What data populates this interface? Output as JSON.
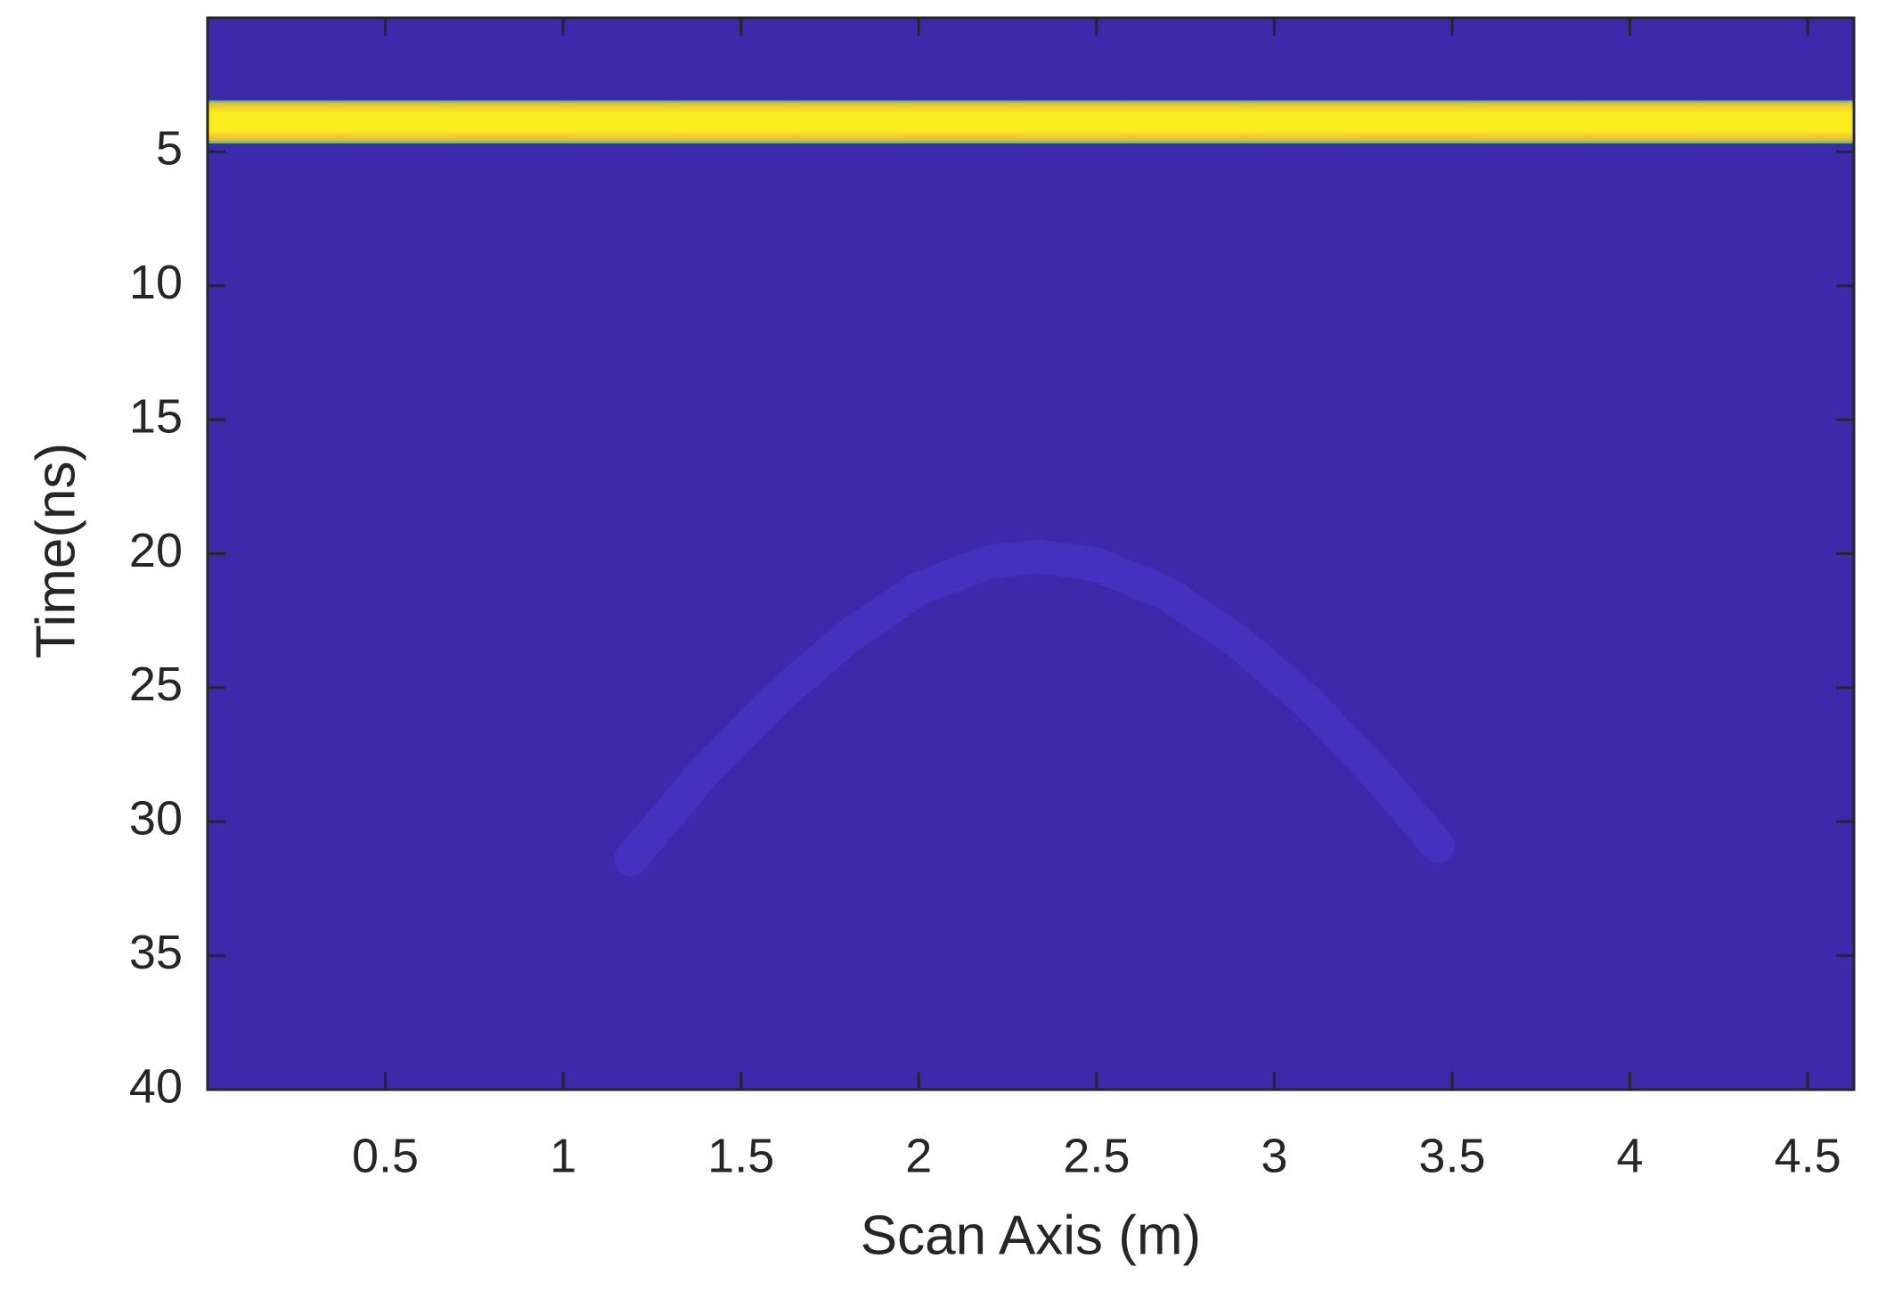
{
  "chart_data": {
    "type": "bscan",
    "x_label": "Scan Axis (m)",
    "y_label": "Time(ns)",
    "xlim": [
      0,
      4.63
    ],
    "ylim": [
      0,
      40
    ],
    "y_reversed": true,
    "xticks": [
      0.5,
      1,
      1.5,
      2,
      2.5,
      3,
      3.5,
      4,
      4.5
    ],
    "yticks": [
      5,
      10,
      15,
      20,
      25,
      30,
      35,
      40
    ],
    "background_color": "#3d29a9",
    "direct_wave": {
      "t_start": 3.08,
      "t_end": 4.69,
      "color": "#f8ee1e"
    },
    "series": [
      {
        "name": "hyperbola",
        "color": "#4534c2",
        "x": [
          1.19,
          1.4,
          1.6,
          1.8,
          2.0,
          2.2,
          2.34,
          2.5,
          2.7,
          2.9,
          3.1,
          3.3,
          3.46
        ],
        "values": [
          31.4,
          28.1,
          25.4,
          23.1,
          21.3,
          20.3,
          20.1,
          20.4,
          21.5,
          23.3,
          25.6,
          28.4,
          30.9
        ]
      }
    ]
  }
}
